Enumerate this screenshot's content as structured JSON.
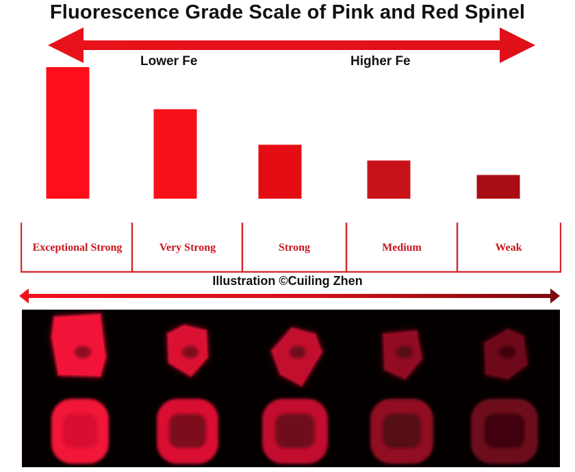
{
  "title": "Fluorescence Grade Scale of Pink and Red Spinel",
  "arrow_labels": {
    "left": "Lower Fe",
    "right": "Higher Fe"
  },
  "credit": "Illustration ©Cuiling Zhen",
  "colors": {
    "arrow": "#e3141c",
    "grade_text": "#c8161d",
    "bar_scale": [
      "#ff0d1a",
      "#f5101a",
      "#e50d14",
      "#c8121a",
      "#a80d14"
    ],
    "photo_background": "#050000"
  },
  "chart_data": {
    "type": "bar",
    "categories": [
      "Exceptional Strong",
      "Very Strong",
      "Strong",
      "Medium",
      "Weak"
    ],
    "values": [
      5,
      3.4,
      2.05,
      1.45,
      0.9
    ],
    "title": "Fluorescence Grade Scale of Pink and Red Spinel",
    "xlabel": "",
    "ylabel": "",
    "ylim": [
      0,
      5
    ],
    "grid": false
  },
  "photo": {
    "description_icon": "spinel-gems-photo",
    "rows": [
      {
        "shape": "rough-crystal",
        "count": 5
      },
      {
        "shape": "cushion-cut",
        "count": 5
      }
    ],
    "brightness": [
      1.0,
      0.9,
      0.8,
      0.6,
      0.45
    ]
  }
}
